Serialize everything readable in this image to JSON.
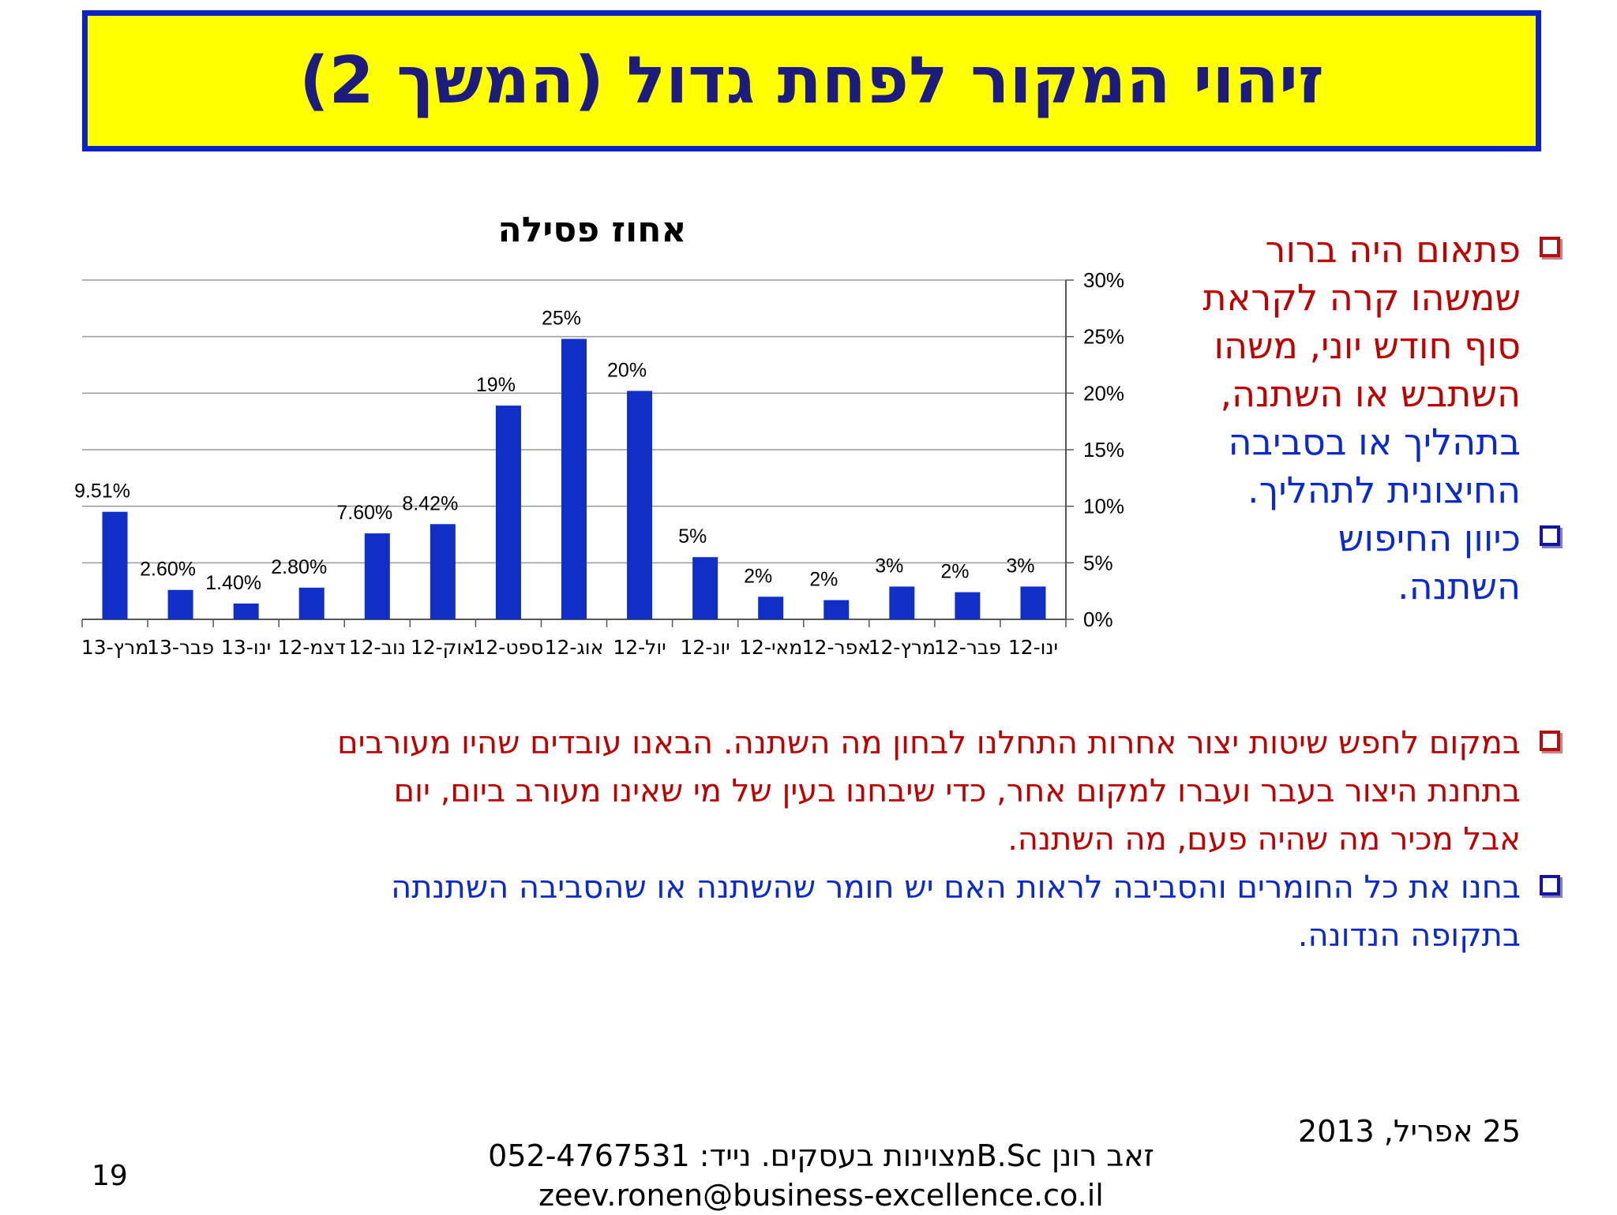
{
  "slide": {
    "title": "זיהוי המקור לפחת גדול (המשך 2)"
  },
  "chart_data": {
    "type": "bar",
    "title": "אחוז פסילה",
    "categories": [
      "מרץ-13",
      "פבר-13",
      "ינו-13",
      "דצמ-12",
      "נוב-12",
      "אוק-12",
      "ספט-12",
      "אוג-12",
      "יול-12",
      "יונ-12",
      "מאי-12",
      "אפר-12",
      "מרץ-12",
      "פבר-12",
      "ינו-12"
    ],
    "values": [
      9.51,
      2.6,
      1.4,
      2.8,
      7.6,
      8.42,
      18.9,
      24.8,
      20.2,
      5.5,
      2.0,
      1.7,
      2.9,
      2.4,
      2.9
    ],
    "data_labels": [
      "9.51%",
      "2.60%",
      "1.40%",
      "2.80%",
      "7.60%",
      "8.42%",
      "19%",
      "25%",
      "20%",
      "5%",
      "2%",
      "2%",
      "3%",
      "2%",
      "3%"
    ],
    "y_ticks": [
      "0%",
      "5%",
      "10%",
      "15%",
      "20%",
      "25%",
      "30%"
    ],
    "ylim": [
      0,
      30
    ],
    "y_axis_side": "right",
    "grid": true,
    "bar_color": "#0f2fc7"
  },
  "side_bullets": [
    {
      "lines": [
        "פתאום היה ברור",
        "שמשהו קרה לקראת",
        "סוף חודש יוני, משהו",
        "השתבש או השתנה,"
      ],
      "color": "red"
    },
    {
      "lines": [
        "בתהליך או בסביבה",
        "החיצונית לתהליך."
      ],
      "color": "blue",
      "no_bullet": true
    },
    {
      "lines": [
        "כיוון החיפוש",
        "השתנה."
      ],
      "color": "blue"
    }
  ],
  "bottom_bullets": [
    {
      "lines": [
        "במקום לחפש שיטות יצור אחרות התחלנו לבחון מה השתנה. הבאנו עובדים שהיו מעורבים",
        "בתחנת היצור בעבר ועברו למקום אחר, כדי שיבחנו בעין של מי שאינו מעורב ביום, יום",
        "אבל מכיר מה שהיה פעם, מה השתנה."
      ],
      "color": "red"
    },
    {
      "lines": [
        "בחנו את כל החומרים והסביבה לראות האם יש חומר שהשתנה או שהסביבה השתנתה",
        "בתקופה הנדונה."
      ],
      "color": "blue"
    }
  ],
  "footer": {
    "date": "25 אפריל, 2013",
    "contact_line1": "זאב רונן      B.Scמצוינות בעסקים.  נייד: 052-4767531",
    "contact_line2": "zeev.ronen@business-excellence.co.il",
    "page_number": "19"
  }
}
